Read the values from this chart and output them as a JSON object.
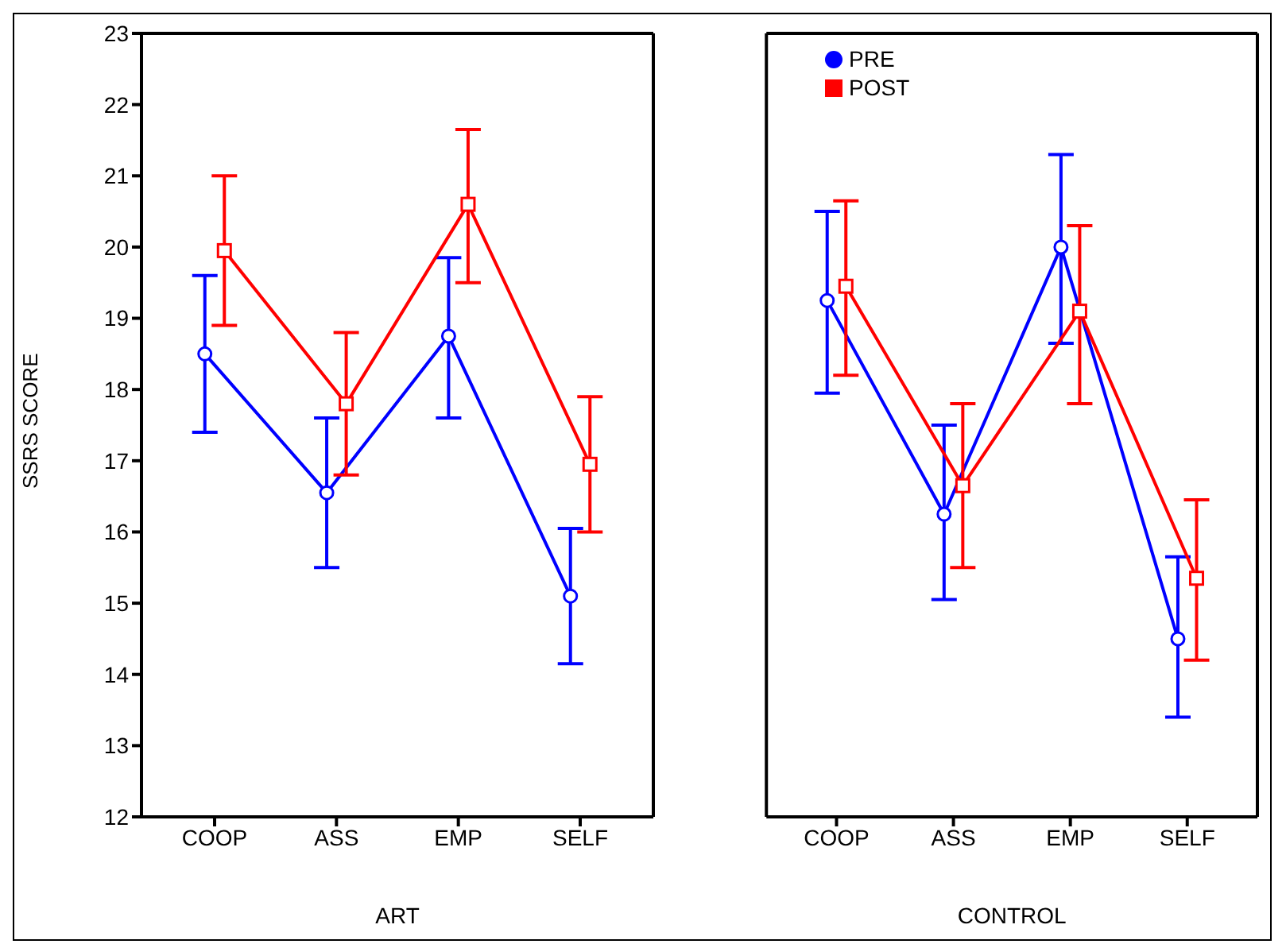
{
  "chart_data": [
    {
      "type": "line",
      "xlabel": "ART",
      "ylabel": "SSRS SCORE",
      "categories": [
        "COOP",
        "ASS",
        "EMP",
        "SELF"
      ],
      "ylim": [
        12,
        23
      ],
      "yticks": [
        12,
        13,
        14,
        15,
        16,
        17,
        18,
        19,
        20,
        21,
        22,
        23
      ],
      "grid": false,
      "legend": false,
      "series": [
        {
          "color": "#0000ff",
          "marker": "circle",
          "values": [
            18.5,
            16.55,
            18.75,
            15.1
          ],
          "errors": [
            [
              17.4,
              19.6
            ],
            [
              15.5,
              17.6
            ],
            [
              17.6,
              19.85
            ],
            [
              14.15,
              16.05
            ]
          ]
        },
        {
          "color": "#ff0000",
          "marker": "square",
          "values": [
            19.95,
            17.8,
            20.6,
            16.95
          ],
          "errors": [
            [
              18.9,
              21.0
            ],
            [
              16.8,
              18.8
            ],
            [
              19.5,
              21.65
            ],
            [
              16.0,
              17.9
            ]
          ]
        }
      ]
    },
    {
      "type": "line",
      "xlabel": "CONTROL",
      "categories": [
        "COOP",
        "ASS",
        "EMP",
        "SELF"
      ],
      "ylim": [
        12,
        23
      ],
      "yticks": [
        12,
        13,
        14,
        15,
        16,
        17,
        18,
        19,
        20,
        21,
        22,
        23
      ],
      "tick_labels": "x",
      "grid": false,
      "legend": "top left",
      "series": [
        {
          "name": "PRE",
          "color": "#0000ff",
          "marker": "circle",
          "values": [
            19.25,
            16.25,
            20.0,
            14.5
          ],
          "errors": [
            [
              17.95,
              20.5
            ],
            [
              15.05,
              17.5
            ],
            [
              18.65,
              21.3
            ],
            [
              13.4,
              15.65
            ]
          ]
        },
        {
          "name": "POST",
          "color": "#ff0000",
          "marker": "square",
          "values": [
            19.45,
            16.65,
            19.1,
            15.35
          ],
          "errors": [
            [
              18.2,
              20.65
            ],
            [
              15.5,
              17.8
            ],
            [
              17.8,
              20.3
            ],
            [
              14.2,
              16.45
            ]
          ]
        }
      ]
    }
  ]
}
